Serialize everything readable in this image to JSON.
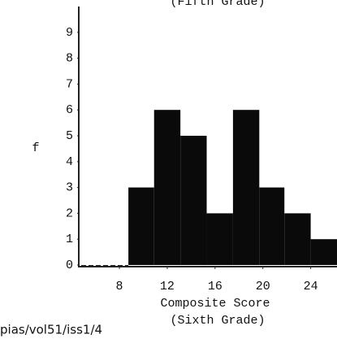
{
  "chart_data": {
    "type": "histogram",
    "title": "(Fifth Grade)",
    "ylabel": "f",
    "xlabel": "Composite Score",
    "subtitle": "(Sixth Grade)",
    "annotation": "pias/vol51/iss1/4",
    "bins": [
      8.75,
      10.9,
      13.1,
      15.3,
      17.5,
      19.7,
      21.8,
      24,
      26.2
    ],
    "counts": [
      3,
      6,
      5,
      2,
      6,
      3,
      2,
      1
    ],
    "color": "#0a0a0a",
    "xlim": [
      4.6,
      26.2
    ],
    "ylim": [
      0,
      10
    ],
    "xticks": [
      8,
      12,
      16,
      20,
      24
    ],
    "yticks": [
      0,
      1,
      2,
      3,
      4,
      5,
      6,
      7,
      8,
      9
    ]
  }
}
